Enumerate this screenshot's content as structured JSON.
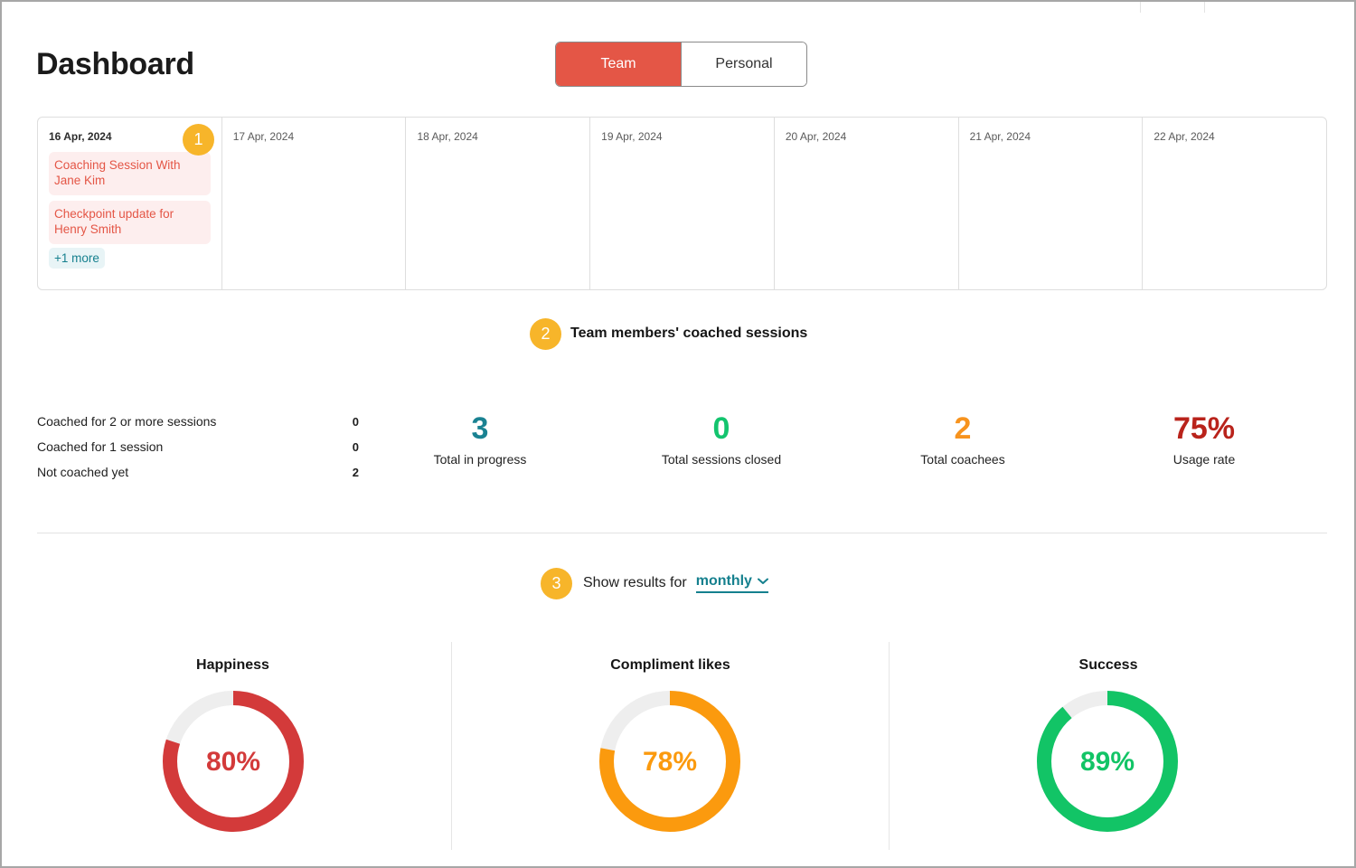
{
  "header": {
    "title": "Dashboard"
  },
  "toggle": {
    "team": "Team",
    "personal": "Personal"
  },
  "calendar": {
    "days": [
      {
        "date": "16 Apr, 2024",
        "events": [
          "Coaching Session With Jane Kim",
          "Checkpoint update for Henry Smith"
        ],
        "more": "+1 more"
      },
      {
        "date": "17 Apr, 2024",
        "events": []
      },
      {
        "date": "18 Apr, 2024",
        "events": []
      },
      {
        "date": "19 Apr, 2024",
        "events": []
      },
      {
        "date": "20 Apr, 2024",
        "events": []
      },
      {
        "date": "21 Apr, 2024",
        "events": []
      },
      {
        "date": "22 Apr, 2024",
        "events": []
      }
    ]
  },
  "badges": {
    "one": "1",
    "two": "2",
    "three": "3"
  },
  "sessions": {
    "title": "Team members' coached sessions",
    "breakdown": [
      {
        "label": "Coached for 2 or more sessions",
        "value": "0"
      },
      {
        "label": "Coached for 1 session",
        "value": "0"
      },
      {
        "label": "Not coached yet",
        "value": "2"
      }
    ],
    "stats": [
      {
        "value": "3",
        "label": "Total in progress",
        "color": "#1a8292"
      },
      {
        "value": "0",
        "label": "Total sessions closed",
        "color": "#13c46e"
      },
      {
        "value": "2",
        "label": "Total coachees",
        "color": "#f7931e"
      },
      {
        "value": "75%",
        "label": "Usage rate",
        "color": "#b9231b"
      }
    ]
  },
  "filter": {
    "label": "Show results for",
    "value": "monthly"
  },
  "gauges": [
    {
      "title": "Happiness",
      "value": 80,
      "text": "80%",
      "color": "#d33a3a"
    },
    {
      "title": "Compliment likes",
      "value": 78,
      "text": "78%",
      "color": "#fb9a0e"
    },
    {
      "title": "Success",
      "value": 89,
      "text": "89%",
      "color": "#12c466"
    }
  ],
  "colors": {
    "accent": "#e45646",
    "badge": "#f7b52a",
    "teal": "#15808e",
    "track": "#eeeeee"
  },
  "icons": {
    "filter_chevron": "chevron-down-icon"
  }
}
